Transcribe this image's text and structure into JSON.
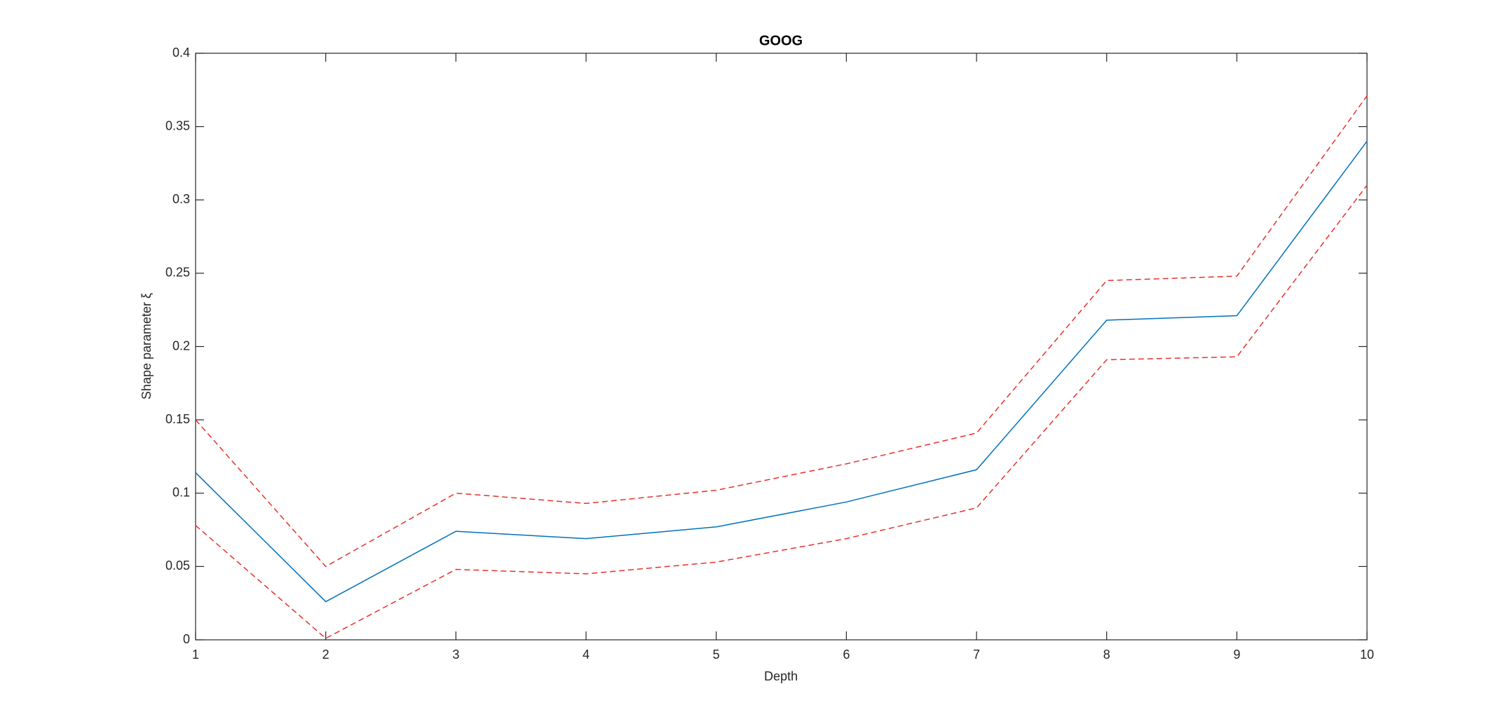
{
  "chart_data": {
    "type": "line",
    "title": "GOOG",
    "xlabel": "Depth",
    "ylabel": "Shape parameter ξ",
    "x": [
      1,
      2,
      3,
      4,
      5,
      6,
      7,
      8,
      9,
      10
    ],
    "series": [
      {
        "color": "#0072bd",
        "linestyle": "solid",
        "values": [
          0.114,
          0.026,
          0.074,
          0.069,
          0.077,
          0.094,
          0.116,
          0.218,
          0.221,
          0.34
        ]
      },
      {
        "color": "#e8302a",
        "linestyle": "dashed",
        "values": [
          0.15,
          0.05,
          0.1,
          0.093,
          0.102,
          0.12,
          0.141,
          0.245,
          0.248,
          0.371
        ]
      },
      {
        "color": "#e8302a",
        "linestyle": "dashed",
        "values": [
          0.078,
          0.001,
          0.048,
          0.045,
          0.053,
          0.069,
          0.09,
          0.191,
          0.193,
          0.31
        ]
      }
    ],
    "xlim": [
      1,
      10
    ],
    "xticks": [
      1,
      2,
      3,
      4,
      5,
      6,
      7,
      8,
      9,
      10
    ],
    "ylim": [
      0,
      0.4
    ],
    "yticks": [
      0,
      0.05,
      0.1,
      0.15,
      0.2,
      0.25,
      0.3,
      0.35,
      0.4
    ],
    "grid": false
  }
}
